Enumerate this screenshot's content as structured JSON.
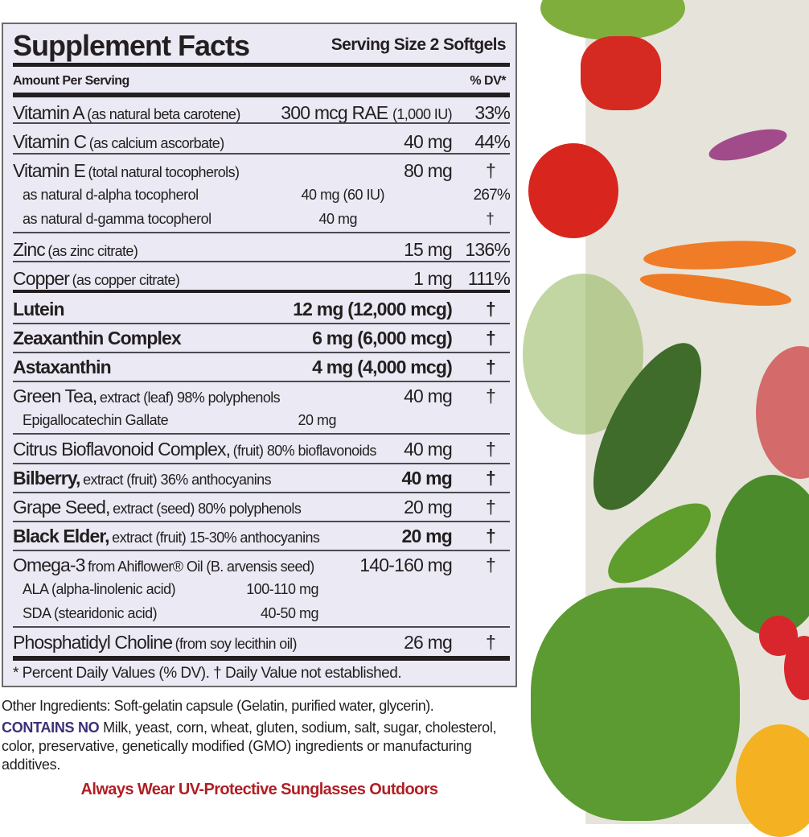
{
  "panel": {
    "title": "Supplement Facts",
    "serving_size": "Serving Size 2 Softgels",
    "amount_per_serving": "Amount Per Serving",
    "dv_header": "% DV*",
    "rows": [
      {
        "name": "Vitamin A",
        "detail": "(as natural beta carotene)",
        "amount": "300 mcg RAE",
        "amount_extra": "(1,000 IU)",
        "dv": "33%",
        "bold": false
      },
      {
        "name": "Vitamin C",
        "detail": "(as calcium ascorbate)",
        "amount": "40 mg",
        "dv": "44%",
        "bold": false
      },
      {
        "name": "Vitamin E",
        "detail": "(total natural tocopherols)",
        "amount": "80 mg",
        "dv": "†",
        "bold": false,
        "sub": [
          {
            "name": "as natural d-alpha tocopherol",
            "amount": "40 mg (60 IU)",
            "dv": "267%"
          },
          {
            "name": "as natural d-gamma tocopherol",
            "amount": "40 mg",
            "dv": "†"
          }
        ]
      },
      {
        "name": "Zinc",
        "detail": "(as zinc citrate)",
        "amount": "15 mg",
        "dv": "136%",
        "bold": false
      },
      {
        "name": "Copper",
        "detail": "(as copper citrate)",
        "amount": "1 mg",
        "dv": "111%",
        "bold": false
      },
      {
        "name": "Lutein",
        "detail": "",
        "amount": "12 mg (12,000 mcg)",
        "dv": "†",
        "bold": true
      },
      {
        "name": "Zeaxanthin Complex",
        "detail": "",
        "amount": "6 mg (6,000 mcg)",
        "dv": "†",
        "bold": true
      },
      {
        "name": "Astaxanthin",
        "detail": "",
        "amount": "4 mg (4,000 mcg)",
        "dv": "†",
        "bold": true
      },
      {
        "name": "Green Tea,",
        "detail": "extract (leaf) 98% polyphenols",
        "amount": "40 mg",
        "dv": "†",
        "bold": false,
        "sub": [
          {
            "name": "Epigallocatechin Gallate",
            "amount": "20 mg",
            "dv": ""
          }
        ]
      },
      {
        "name": "Citrus Bioflavonoid Complex,",
        "detail": "(fruit) 80% bioflavonoids",
        "amount": "40 mg",
        "dv": "†",
        "bold": false
      },
      {
        "name": "Bilberry,",
        "detail": "extract (fruit) 36% anthocyanins",
        "amount": "40 mg",
        "dv": "†",
        "bold": true
      },
      {
        "name": "Grape Seed,",
        "detail": "extract (seed) 80% polyphenols",
        "amount": "20 mg",
        "dv": "†",
        "bold": false
      },
      {
        "name": "Black Elder,",
        "detail": "extract (fruit) 15-30% anthocyanins",
        "amount": "20 mg",
        "dv": "†",
        "bold": true
      },
      {
        "name": "Omega-3",
        "detail": "from Ahiflower® Oil (B. arvensis seed)",
        "amount": "140-160 mg",
        "dv": "†",
        "bold": false,
        "sub": [
          {
            "name": "ALA (alpha-linolenic acid)",
            "amount": "100-110 mg",
            "dv": ""
          },
          {
            "name": "SDA (stearidonic acid)",
            "amount": "40-50 mg",
            "dv": ""
          }
        ]
      },
      {
        "name": "Phosphatidyl Choline",
        "detail": "(from soy lecithin oil)",
        "amount": "26 mg",
        "dv": "†",
        "bold": false
      }
    ],
    "footnote": "* Percent Daily Values (% DV). † Daily Value not established."
  },
  "other_ingredients": "Other Ingredients: Soft-gelatin capsule (Gelatin, purified water, glycerin).",
  "contains_no": {
    "heading": "CONTAINS NO",
    "text": " Milk, yeast, corn, wheat, gluten, sodium, salt, sugar, cholesterol, color, preservative, genetically modified (GMO) ingredients or manufacturing additives."
  },
  "warning": "Always Wear UV-Protective Sunglasses Outdoors",
  "colors": {
    "panel_bg": "#ebe9f3",
    "text": "#231f20",
    "contains_heading": "#3d2f7a",
    "warning": "#b01f24"
  },
  "image": {
    "description_icon": "vegetables-photo"
  }
}
